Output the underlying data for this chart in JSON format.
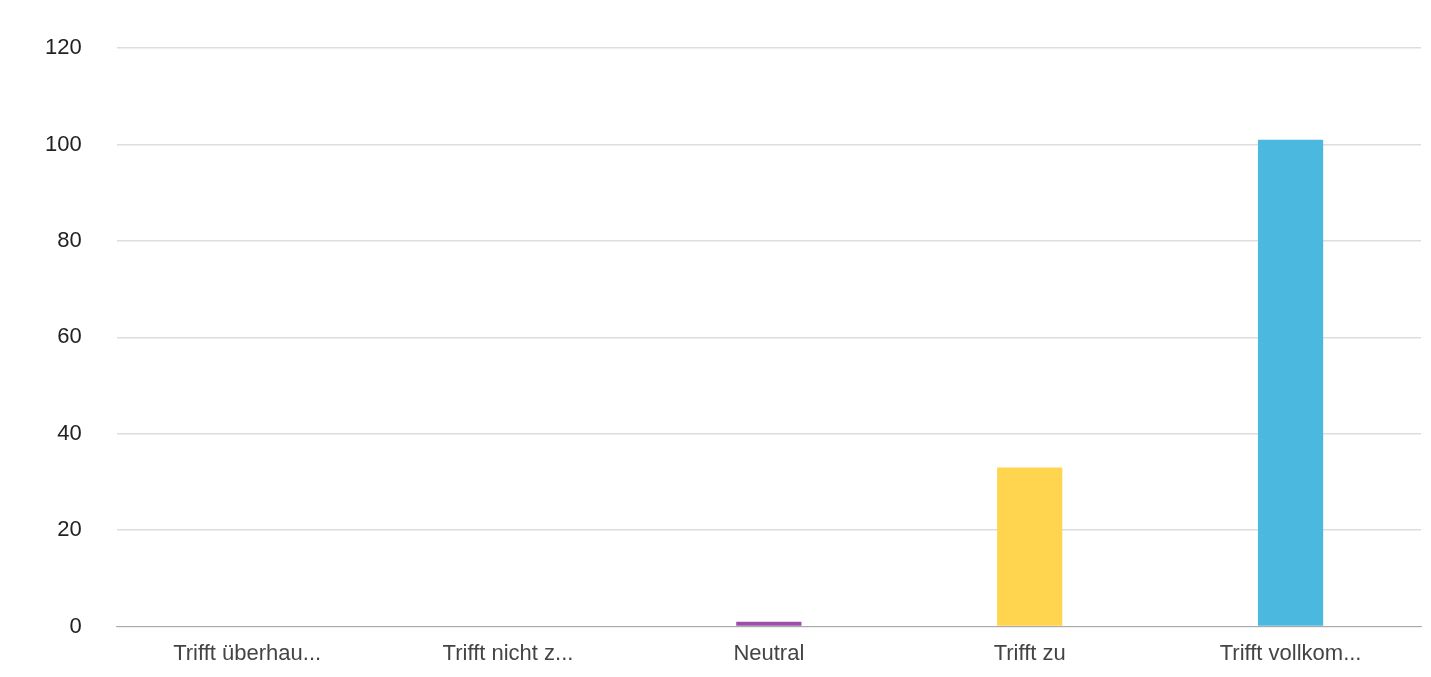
{
  "chart_data": {
    "type": "bar",
    "categories": [
      "Trifft überhau...",
      "Trifft nicht z...",
      "Neutral",
      "Trifft zu",
      "Trifft vollkom..."
    ],
    "values": [
      0,
      0,
      1,
      33,
      101
    ],
    "colors": [
      "#9c9c9c",
      "#9c9c9c",
      "#9b4fa8",
      "#ffd54f",
      "#4bb8e0"
    ],
    "ylim": [
      0,
      120
    ],
    "yticks": [
      0,
      20,
      40,
      60,
      80,
      100,
      120
    ],
    "grid": "y"
  }
}
